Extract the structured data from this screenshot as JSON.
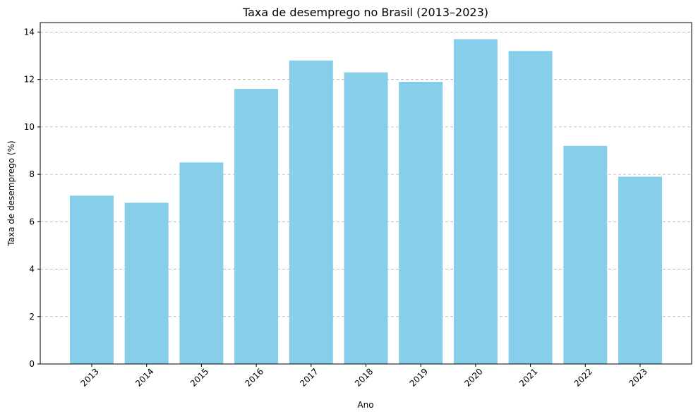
{
  "colors": {
    "bar": "#87ceeb",
    "grid": "#b0b0b0",
    "axis": "#000000"
  },
  "chart_data": {
    "type": "bar",
    "title": "Taxa de desemprego no Brasil (2013–2023)",
    "xlabel": "Ano",
    "ylabel": "Taxa de desemprego (%)",
    "categories": [
      "2013",
      "2014",
      "2015",
      "2016",
      "2017",
      "2018",
      "2019",
      "2020",
      "2021",
      "2022",
      "2023"
    ],
    "values": [
      7.1,
      6.8,
      8.5,
      11.6,
      12.8,
      12.3,
      11.9,
      13.7,
      13.2,
      9.2,
      7.9
    ],
    "ylim": [
      0,
      14.4
    ],
    "yticks": [
      0,
      2,
      4,
      6,
      8,
      10,
      12,
      14
    ],
    "grid": "y-dashed",
    "legend": "none"
  }
}
